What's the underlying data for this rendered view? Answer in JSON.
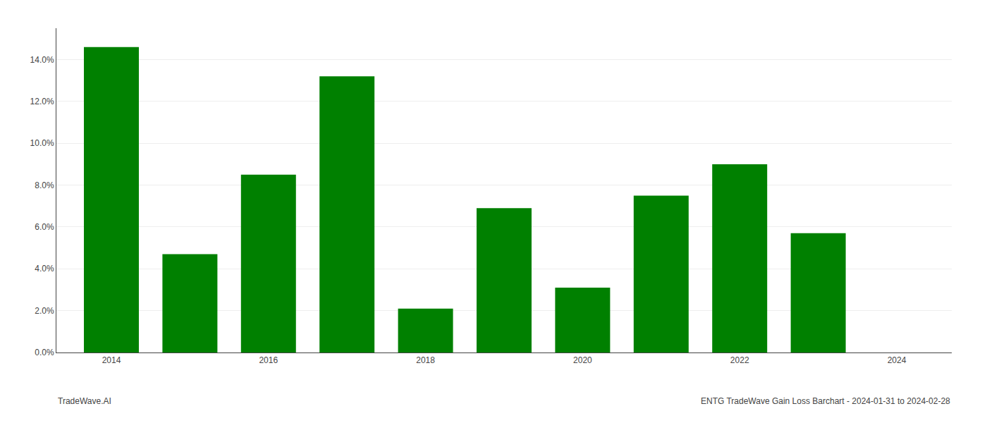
{
  "chart_data": {
    "type": "bar",
    "x": [
      2014,
      2015,
      2016,
      2017,
      2018,
      2019,
      2020,
      2021,
      2022,
      2023
    ],
    "values": [
      0.146,
      0.047,
      0.085,
      0.132,
      0.021,
      0.069,
      0.031,
      0.075,
      0.09,
      0.057
    ],
    "color": "#008000",
    "xlim": [
      2013.3,
      2024.7
    ],
    "xticks": [
      2014,
      2016,
      2018,
      2020,
      2022,
      2024
    ],
    "ylim": [
      0,
      0.155
    ],
    "yticks": [
      {
        "value": 0.0,
        "label": "0.0%"
      },
      {
        "value": 0.02,
        "label": "2.0%"
      },
      {
        "value": 0.04,
        "label": "4.0%"
      },
      {
        "value": 0.06,
        "label": "6.0%"
      },
      {
        "value": 0.08,
        "label": "8.0%"
      },
      {
        "value": 0.1,
        "label": "10.0%"
      },
      {
        "value": 0.12,
        "label": "12.0%"
      },
      {
        "value": 0.14,
        "label": "14.0%"
      }
    ],
    "grid": true,
    "annotations": [
      "TradeWave.AI",
      "ENTG TradeWave Gain Loss Barchart - 2024-01-31 to 2024-02-28"
    ]
  }
}
